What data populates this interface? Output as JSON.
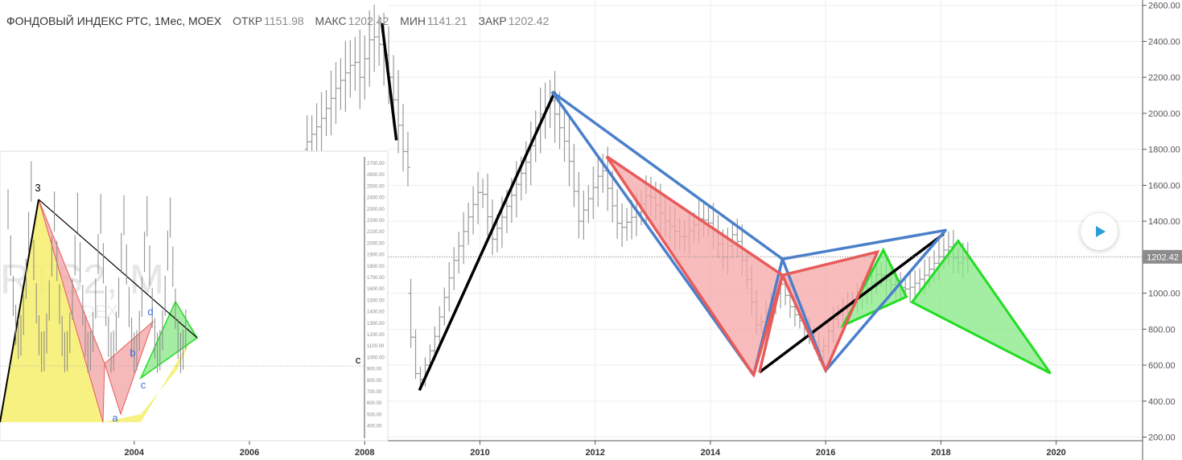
{
  "header": {
    "symbol": "ФОНДОВЫЙ ИНДЕКС РТС, 1Мес, MOEX",
    "open_label": "ОТКР",
    "open_value": "1151.98",
    "high_label": "МАКС",
    "high_value": "1202.42",
    "low_label": "МИН",
    "low_value": "1141.21",
    "close_label": "ЗАКР",
    "close_value": "1202.42"
  },
  "price_tag": "1202.42",
  "icons": {
    "play": "play-icon"
  },
  "colors": {
    "blue": "#4a7fcb",
    "red": "#e85b5b",
    "red_fill": "#f6a5a5",
    "green": "#22dd22",
    "green_fill": "#86e886",
    "black": "#000000",
    "bars": "#9a9a9a"
  },
  "chart_data": [
    {
      "type": "ohlc",
      "y_ticks": [
        "200.00",
        "400.00",
        "600.00",
        "800.00",
        "1000.00",
        "1200.00",
        "1400.00",
        "1600.00",
        "1800.00",
        "2000.00",
        "2200.00",
        "2400.00",
        "2600.00"
      ],
      "x_ticks": [
        "2004",
        "2006",
        "2008",
        "2010",
        "2012",
        "2014",
        "2016",
        "2018",
        "2020"
      ],
      "x_range": [
        2001.95,
        2021.5
      ],
      "ylim": [
        180,
        2630
      ],
      "last_price": 1202.42,
      "price_path": [
        [
          2008.8,
          1000
        ],
        [
          2008.95,
          560
        ],
        [
          2009.05,
          520
        ],
        [
          2009.3,
          760
        ],
        [
          2009.6,
          1150
        ],
        [
          2009.9,
          1440
        ],
        [
          2010.1,
          1600
        ],
        [
          2010.3,
          1300
        ],
        [
          2010.6,
          1520
        ],
        [
          2010.9,
          1740
        ],
        [
          2011.1,
          1980
        ],
        [
          2011.3,
          2070
        ],
        [
          2011.6,
          1800
        ],
        [
          2011.8,
          1400
        ],
        [
          2012.0,
          1550
        ],
        [
          2012.2,
          1700
        ],
        [
          2012.5,
          1350
        ],
        [
          2012.8,
          1450
        ],
        [
          2013.0,
          1560
        ],
        [
          2013.3,
          1400
        ],
        [
          2013.6,
          1300
        ],
        [
          2013.9,
          1420
        ],
        [
          2014.1,
          1380
        ],
        [
          2014.3,
          1200
        ],
        [
          2014.5,
          1350
        ],
        [
          2014.7,
          1100
        ],
        [
          2014.9,
          800
        ],
        [
          2015.1,
          920
        ],
        [
          2015.3,
          1050
        ],
        [
          2015.5,
          900
        ],
        [
          2015.7,
          820
        ],
        [
          2015.9,
          720
        ],
        [
          2016.0,
          660
        ],
        [
          2016.2,
          850
        ],
        [
          2016.5,
          950
        ],
        [
          2016.8,
          1020
        ],
        [
          2017.0,
          1120
        ],
        [
          2017.2,
          1050
        ],
        [
          2017.5,
          1020
        ],
        [
          2017.8,
          1100
        ],
        [
          2018.0,
          1180
        ],
        [
          2018.2,
          1270
        ],
        [
          2018.35,
          1160
        ],
        [
          2018.5,
          1202
        ]
      ],
      "pattern_lines": [
        {
          "color": "black",
          "points": [
            [
              2008.95,
              460
            ],
            [
              2011.3,
              2120
            ]
          ]
        },
        {
          "color": "black",
          "points": [
            [
              2014.85,
              560
            ],
            [
              2018.05,
              1330
            ]
          ]
        },
        {
          "color": "blue",
          "points": [
            [
              2011.25,
              2120
            ],
            [
              2014.75,
              545
            ],
            [
              2015.25,
              1190
            ],
            [
              2016.0,
              570
            ],
            [
              2018.08,
              1350
            ],
            [
              2015.25,
              1190
            ],
            [
              2011.25,
              2120
            ]
          ]
        },
        {
          "color": "red",
          "points": [
            [
              2012.2,
              1760
            ],
            [
              2014.75,
              545
            ],
            [
              2015.25,
              1100
            ],
            [
              2012.2,
              1760
            ]
          ]
        },
        {
          "color": "red",
          "points": [
            [
              2014.85,
              560
            ],
            [
              2015.25,
              1100
            ],
            [
              2016.0,
              570
            ]
          ]
        },
        {
          "color": "red",
          "points": [
            [
              2015.25,
              1100
            ],
            [
              2016.9,
              1230
            ],
            [
              2016.0,
              570
            ]
          ]
        }
      ],
      "pattern_fills": [
        {
          "color": "red",
          "points": [
            [
              2012.2,
              1760
            ],
            [
              2014.75,
              545
            ],
            [
              2015.25,
              1100
            ]
          ]
        },
        {
          "color": "red",
          "points": [
            [
              2015.25,
              1100
            ],
            [
              2016.9,
              1230
            ],
            [
              2016.0,
              570
            ]
          ]
        },
        {
          "color": "green",
          "points": [
            [
              2016.3,
              820
            ],
            [
              2017.0,
              1240
            ],
            [
              2017.4,
              980
            ]
          ]
        },
        {
          "color": "green",
          "points": [
            [
              2017.5,
              950
            ],
            [
              2018.3,
              1290
            ],
            [
              2019.9,
              555
            ]
          ]
        }
      ]
    },
    {
      "type": "ohlc",
      "inset": "top-left",
      "x_ticks": [
        "2004",
        "2006",
        "2008"
      ],
      "x_range": [
        2001.95,
        2008.8
      ],
      "ylim": [
        180,
        2630
      ],
      "price_path": [
        [
          2007.0,
          1800
        ],
        [
          2007.3,
          1950
        ],
        [
          2007.6,
          2150
        ],
        [
          2007.9,
          2300
        ],
        [
          2008.0,
          2200
        ],
        [
          2008.2,
          2450
        ],
        [
          2008.4,
          2350
        ],
        [
          2008.6,
          2050
        ],
        [
          2008.8,
          1700
        ]
      ],
      "pattern_lines": [
        {
          "color": "black",
          "points": [
            [
              2008.3,
              2500
            ],
            [
              2008.55,
              1850
            ]
          ]
        }
      ]
    },
    {
      "type": "ohlc",
      "inset": "bottom-left",
      "annotations": [
        "3",
        "d",
        "b",
        "c",
        "a",
        "c"
      ],
      "watermark": "RTS2, M",
      "watermark2": "RTS INDEX",
      "x_ticks": [
        "2004",
        "2006",
        "2008"
      ],
      "y_ticks": [
        "2700.00",
        "2600.00",
        "2500.00",
        "2400.00",
        "2300.00",
        "2200.00",
        "2100.00",
        "2000.00",
        "1900.00",
        "1800.00",
        "1700.00",
        "1600.00",
        "1500.00",
        "1400.00",
        "1300.00",
        "1200.00",
        "1100.00",
        "1000.00",
        "900.00",
        "800.00",
        "700.00",
        "600.00",
        "500.00",
        "400.00"
      ]
    }
  ]
}
